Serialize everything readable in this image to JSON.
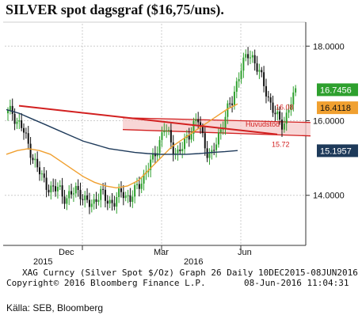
{
  "title": "SILVER spot  dagsgraf ($16,75/uns).",
  "chart_data": {
    "type": "candlestick",
    "y_ticks": [
      "18.0000",
      "16.0000",
      "14.0000"
    ],
    "y_tick_values": [
      18,
      16,
      14
    ],
    "ylim": [
      12.7,
      18.6
    ],
    "x_labels": {
      "months": [
        "Dec",
        "Mar",
        "Jun"
      ],
      "years": [
        "2015",
        "2016"
      ]
    },
    "price_tags": [
      {
        "label": "16.7456",
        "value": 16.7456,
        "color": "#2ea02e"
      },
      {
        "label": "16.4118",
        "value": 16.4118,
        "color": "#f0a030"
      },
      {
        "label": "15.1957",
        "value": 15.1957,
        "color": "#1e3a5a"
      }
    ],
    "annotations": {
      "upper_line_label": "16.08",
      "lower_line_label": "15.72",
      "zone_label": "Huvudstöd"
    },
    "zone": {
      "top": 16.08,
      "bottom": 15.72
    },
    "trendline": {
      "start": 16.4,
      "end": 15.72
    },
    "close_path": [
      16.2,
      16.25,
      16.0,
      15.9,
      15.6,
      15.3,
      15.0,
      14.7,
      14.5,
      14.3,
      14.2,
      14.1,
      14.25,
      14.0,
      13.9,
      14.0,
      14.2,
      14.1,
      13.85,
      13.75,
      13.8,
      13.95,
      14.05,
      13.9,
      13.85,
      13.8,
      13.95,
      14.1,
      14.0,
      13.9,
      14.1,
      14.3,
      14.5,
      14.7,
      14.9,
      15.2,
      15.5,
      15.8,
      15.6,
      15.3,
      15.1,
      15.2,
      15.5,
      15.7,
      15.9,
      16.0,
      15.6,
      15.2,
      15.0,
      15.3,
      15.7,
      16.0,
      16.3,
      16.5,
      17.0,
      17.4,
      17.6,
      17.8,
      17.7,
      17.4,
      17.1,
      16.8,
      16.5,
      16.2,
      16.0,
      15.9,
      16.2,
      16.5,
      16.75
    ],
    "ma_orange": [
      15.1,
      15.2,
      15.25,
      15.2,
      15.1,
      14.9,
      14.7,
      14.5,
      14.35,
      14.25,
      14.2,
      14.25,
      14.4,
      14.7,
      15.0,
      15.3,
      15.5,
      15.7,
      15.9,
      16.1,
      16.3,
      16.45
    ],
    "ma_blue": [
      16.3,
      16.2,
      16.05,
      15.9,
      15.75,
      15.6,
      15.45,
      15.35,
      15.25,
      15.2,
      15.15,
      15.12,
      15.1,
      15.1,
      15.1,
      15.12,
      15.15,
      15.17,
      15.2
    ],
    "colors": {
      "up": "#2ea02e",
      "down": "#111111",
      "zone": "#f6c8c8",
      "zone_line": "#d22020",
      "ma_orange": "#f0a030",
      "ma_blue": "#1e3a5a"
    }
  },
  "footer": {
    "line1": "XAG Curncy (Silver Spot  $/Oz) Graph 26  Daily 10DEC2015-08JUN2016",
    "line2_left": "Copyright© 2016 Bloomberg Finance L.P.",
    "line2_right": "08-Jun-2016 11:04:31"
  },
  "source": "Källa: SEB, Bloomberg"
}
